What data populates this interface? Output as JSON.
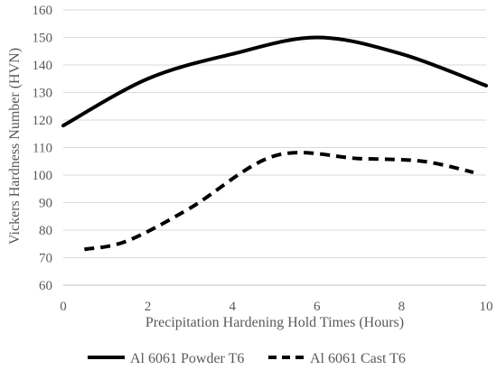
{
  "chart_data": {
    "type": "line",
    "title": "",
    "xlabel": "Precipitation Hardening Hold Times (Hours)",
    "ylabel": "Vickers Hardness Number (HVN)",
    "xlim": [
      0,
      10
    ],
    "ylim": [
      60,
      160
    ],
    "x_ticks": [
      0,
      2,
      4,
      6,
      8,
      10
    ],
    "y_ticks": [
      60,
      70,
      80,
      90,
      100,
      110,
      120,
      130,
      140,
      150,
      160
    ],
    "grid": "horizontal",
    "legend_position": "bottom",
    "series": [
      {
        "name": "Al 6061 Powder T6",
        "style": "solid",
        "color": "#000000",
        "x": [
          0,
          2,
          4,
          6,
          8,
          10
        ],
        "y": [
          118,
          135,
          144,
          150,
          144,
          132.5
        ]
      },
      {
        "name": "Al 6061 Cast T6",
        "style": "dashed",
        "color": "#000000",
        "x": [
          0.5,
          1.5,
          3,
          5,
          7,
          8.5,
          9.7
        ],
        "y": [
          73,
          76,
          88,
          107,
          106,
          105,
          101
        ]
      }
    ]
  }
}
